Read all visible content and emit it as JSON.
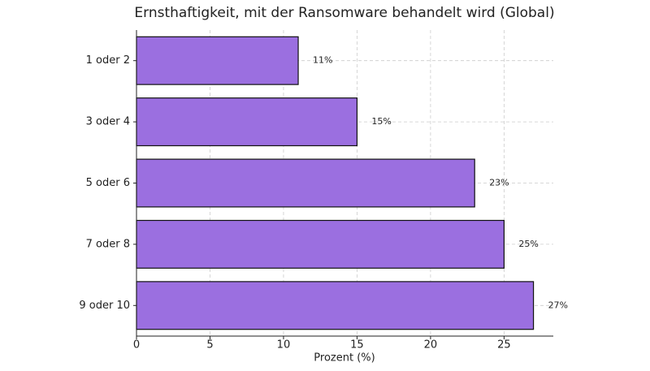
{
  "chart_data": {
    "type": "barh",
    "title": "Ernsthaftigkeit, mit der Ransomware behandelt wird (Global)",
    "xlabel": "Prozent (%)",
    "categories": [
      "1 oder 2",
      "3 oder 4",
      "5 oder 6",
      "7 oder 8",
      "9 oder 10"
    ],
    "values": [
      11,
      15,
      23,
      25,
      27
    ],
    "value_labels": [
      "11%",
      "15%",
      "23%",
      "25%",
      "27%"
    ],
    "color": "#9b6fe0",
    "xlim": [
      0,
      28.35
    ],
    "xticks": [
      0,
      5,
      10,
      15,
      20,
      25
    ],
    "grid": true
  }
}
